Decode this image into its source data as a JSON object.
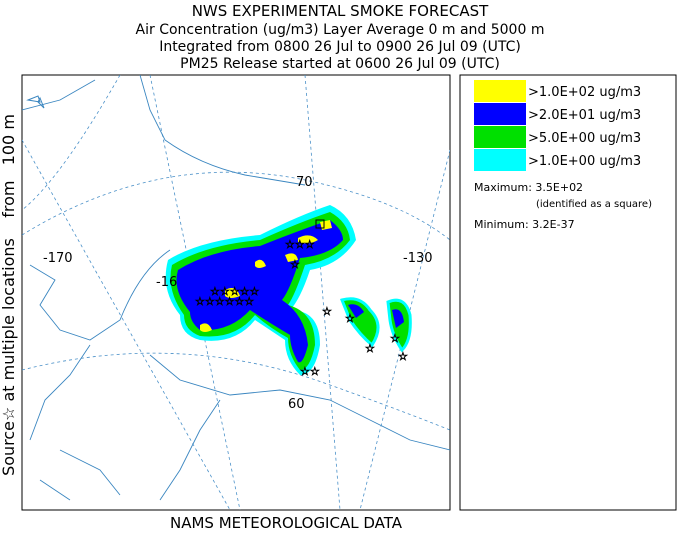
{
  "title": "NWS EXPERIMENTAL SMOKE FORECAST",
  "subtitle_lines": [
    "Air Concentration (ug/m3) Layer Average    0 m and  5000 m",
    "Integrated from 0800 26 Jul to 0900 26 Jul 09 (UTC)",
    "PM25 Release started at 0600 26 Jul 09 (UTC)"
  ],
  "side_label": "Source☆ at multiple locations    from   100 m",
  "footer": "NAMS METEOROLOGICAL DATA",
  "map_labels": [
    "-170",
    "-16",
    "70",
    "-130",
    "60"
  ],
  "legend": [
    {
      "label": ">1.0E+02 ug/m3",
      "color": "#ffff00"
    },
    {
      "label": ">2.0E+01 ug/m3",
      "color": "#0000ff"
    },
    {
      "label": ">5.0E+00 ug/m3",
      "color": "#00e000"
    },
    {
      "label": ">1.0E+00 ug/m3",
      "color": "#00ffff"
    }
  ],
  "maximum": "Maximum: 3.5E+02",
  "maximum_note": "(identified as a square)",
  "minimum": "Minimum: 3.2E-37"
}
